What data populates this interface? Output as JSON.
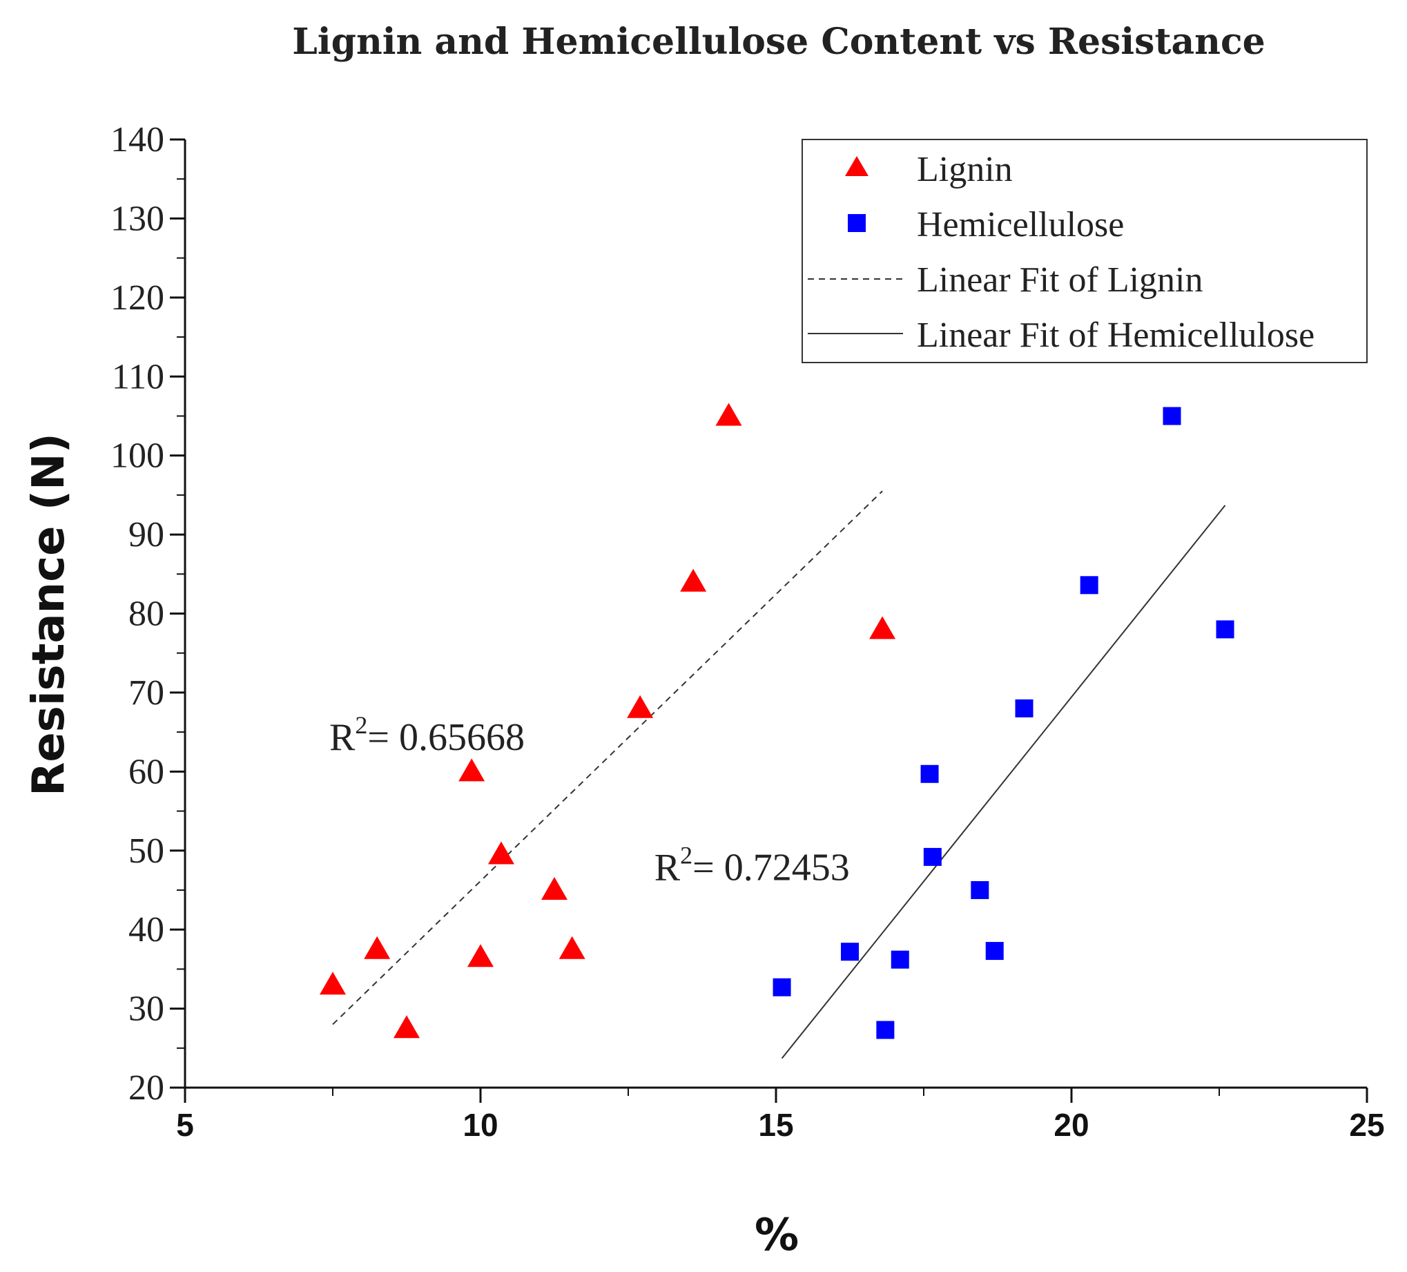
{
  "chart_data": {
    "type": "scatter",
    "title": "Lignin and Hemicellulose Content vs Resistance",
    "xlabel": "%",
    "ylabel": "Resistance (N)",
    "xlim": [
      5,
      25
    ],
    "ylim": [
      20,
      140
    ],
    "x_ticks": [
      "5",
      "10",
      "15",
      "20",
      "25"
    ],
    "y_ticks": [
      "20",
      "30",
      "40",
      "50",
      "60",
      "70",
      "80",
      "90",
      "100",
      "110",
      "120",
      "130",
      "140"
    ],
    "grid": false,
    "legend_position": "top-right",
    "series": [
      {
        "name": "Lignin",
        "marker": "triangle",
        "color": "#ff0000",
        "points": [
          {
            "x": 7.5,
            "y": 33
          },
          {
            "x": 8.25,
            "y": 37.5
          },
          {
            "x": 8.75,
            "y": 27.5
          },
          {
            "x": 9.85,
            "y": 60
          },
          {
            "x": 10.0,
            "y": 36.5
          },
          {
            "x": 10.35,
            "y": 49.5
          },
          {
            "x": 11.25,
            "y": 45
          },
          {
            "x": 11.55,
            "y": 37.5
          },
          {
            "x": 12.7,
            "y": 68
          },
          {
            "x": 13.6,
            "y": 84
          },
          {
            "x": 14.2,
            "y": 105
          },
          {
            "x": 16.8,
            "y": 78
          }
        ]
      },
      {
        "name": "Hemicellulose",
        "marker": "square",
        "color": "#0000ff",
        "points": [
          {
            "x": 15.1,
            "y": 32.7
          },
          {
            "x": 16.25,
            "y": 37.2
          },
          {
            "x": 16.85,
            "y": 27.3
          },
          {
            "x": 17.1,
            "y": 36.2
          },
          {
            "x": 17.6,
            "y": 59.7
          },
          {
            "x": 17.65,
            "y": 49.2
          },
          {
            "x": 18.45,
            "y": 45
          },
          {
            "x": 18.7,
            "y": 37.3
          },
          {
            "x": 19.2,
            "y": 68
          },
          {
            "x": 20.3,
            "y": 83.6
          },
          {
            "x": 21.7,
            "y": 105
          },
          {
            "x": 22.6,
            "y": 78
          }
        ]
      },
      {
        "name": "Linear Fit of Lignin",
        "style": "dashed",
        "color": "#333333",
        "x": [
          7.5,
          16.8
        ],
        "y": [
          28,
          95.5
        ]
      },
      {
        "name": "Linear Fit of Hemicellulose",
        "style": "solid",
        "color": "#333333",
        "x": [
          15.1,
          22.6
        ],
        "y": [
          23.7,
          93.7
        ]
      }
    ],
    "annotations": [
      {
        "r_label": "R",
        "sup": "2",
        "value": "= 0.65668",
        "x": 7.5,
        "y": 64.5
      },
      {
        "r_label": "R",
        "sup": "2",
        "value": "= 0.72453",
        "x": 13.0,
        "y": 48
      }
    ]
  }
}
